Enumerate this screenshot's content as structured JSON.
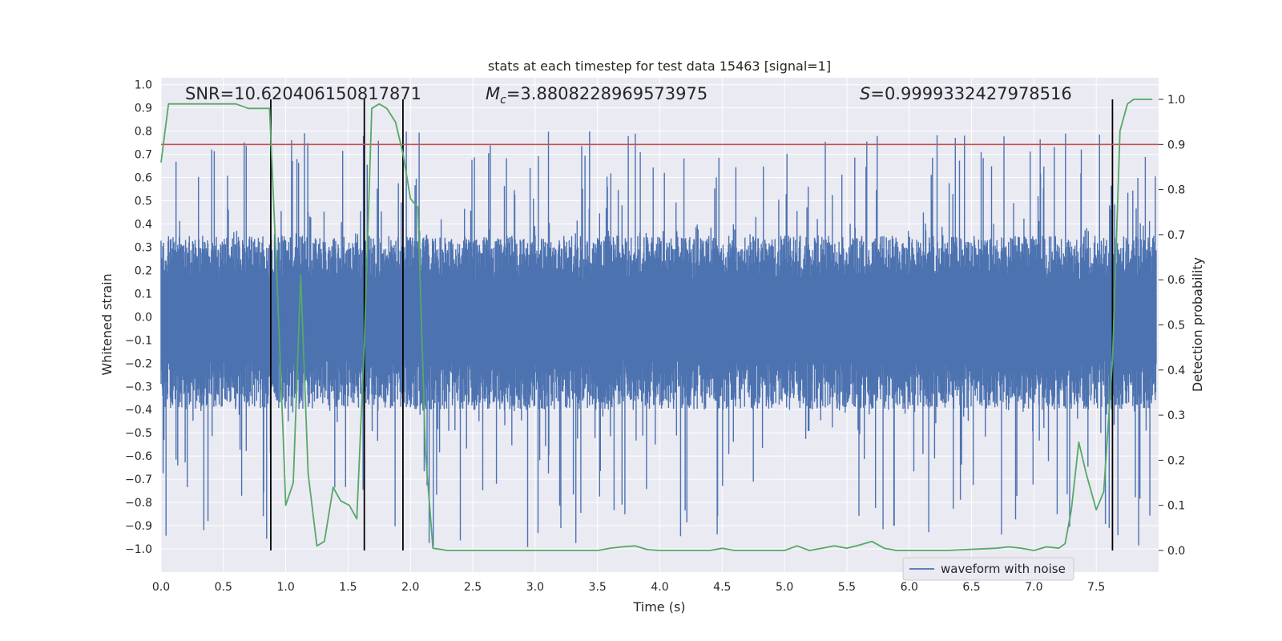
{
  "chart_data": {
    "type": "line",
    "title": "stats at each timestep for test data 15463 [signal=1]",
    "xlabel": "Time (s)",
    "ylabel": "Whitened strain",
    "y2label": "Detection probability",
    "xlim": [
      0.0,
      8.0
    ],
    "ylim": [
      -1.1,
      1.03
    ],
    "y2lim": [
      -0.048,
      1.048
    ],
    "xticks": [
      "0.0",
      "0.5",
      "1.0",
      "1.5",
      "2.0",
      "2.5",
      "3.0",
      "3.5",
      "4.0",
      "4.5",
      "5.0",
      "5.5",
      "6.0",
      "6.5",
      "7.0",
      "7.5"
    ],
    "yticks": [
      "1.0",
      "0.9",
      "0.8",
      "0.7",
      "0.6",
      "0.5",
      "0.4",
      "0.3",
      "0.2",
      "0.1",
      "0.0",
      "-0.1",
      "-0.2",
      "-0.3",
      "-0.4",
      "-0.5",
      "-0.6",
      "-0.7",
      "-0.8",
      "-0.9",
      "-1.0"
    ],
    "y2ticks": [
      "1.0",
      "0.9",
      "0.8",
      "0.7",
      "0.6",
      "0.5",
      "0.4",
      "0.3",
      "0.2",
      "0.1",
      "0.0"
    ],
    "annotations": {
      "snr": "SNR=10.620406150817871",
      "mc_symbol": "M",
      "mc_subscript": "c",
      "mc_value": "=3.8808228969573975",
      "s_symbol": "S",
      "s_value": "=0.9999332427978516"
    },
    "legend": {
      "label": "waveform with noise",
      "location": "lower-right"
    },
    "threshold": {
      "value": 0.9,
      "axis": "right",
      "color": "#c44e52"
    },
    "vertical_lines": [
      0.88,
      1.63,
      1.94,
      7.63
    ],
    "series": [
      {
        "name": "waveform with noise",
        "color": "#4c72b0",
        "axis": "left",
        "style": "noisy-band",
        "typical_upper": 0.35,
        "typical_lower": -0.4,
        "spike_upper": 0.8,
        "spike_lower": -1.0
      },
      {
        "name": "detection probability",
        "color": "#55a868",
        "axis": "right",
        "x": [
          0.0,
          0.06,
          0.12,
          0.2,
          0.3,
          0.4,
          0.5,
          0.6,
          0.7,
          0.8,
          0.87,
          0.93,
          0.98,
          1.0,
          1.06,
          1.12,
          1.18,
          1.25,
          1.31,
          1.38,
          1.44,
          1.51,
          1.57,
          1.63,
          1.69,
          1.75,
          1.81,
          1.88,
          1.94,
          2.0,
          2.06,
          2.12,
          2.18,
          2.3,
          2.5,
          3.0,
          3.5,
          3.6,
          3.7,
          3.8,
          3.9,
          4.0,
          4.2,
          4.4,
          4.5,
          4.6,
          4.8,
          5.0,
          5.05,
          5.1,
          5.2,
          5.3,
          5.4,
          5.5,
          5.6,
          5.7,
          5.8,
          5.9,
          6.0,
          6.3,
          6.7,
          6.8,
          6.9,
          7.0,
          7.1,
          7.2,
          7.25,
          7.3,
          7.36,
          7.42,
          7.5,
          7.56,
          7.63,
          7.69,
          7.75,
          7.8,
          7.87,
          7.95
        ],
        "y": [
          0.86,
          0.99,
          0.99,
          0.99,
          0.99,
          0.99,
          0.99,
          0.99,
          0.98,
          0.98,
          0.98,
          0.6,
          0.25,
          0.1,
          0.15,
          0.61,
          0.17,
          0.01,
          0.02,
          0.14,
          0.11,
          0.1,
          0.07,
          0.46,
          0.98,
          0.99,
          0.98,
          0.95,
          0.88,
          0.78,
          0.76,
          0.22,
          0.005,
          0.0,
          0.0,
          0.0,
          0.0,
          0.005,
          0.008,
          0.01,
          0.002,
          0.0,
          0.0,
          0.0,
          0.005,
          0.0,
          0.0,
          0.0,
          0.005,
          0.01,
          0.0,
          0.005,
          0.01,
          0.005,
          0.012,
          0.02,
          0.005,
          0.0,
          0.0,
          0.0,
          0.005,
          0.008,
          0.005,
          0.0,
          0.008,
          0.005,
          0.015,
          0.09,
          0.24,
          0.17,
          0.09,
          0.13,
          0.42,
          0.93,
          0.99,
          1.0,
          1.0,
          1.0
        ]
      }
    ]
  }
}
